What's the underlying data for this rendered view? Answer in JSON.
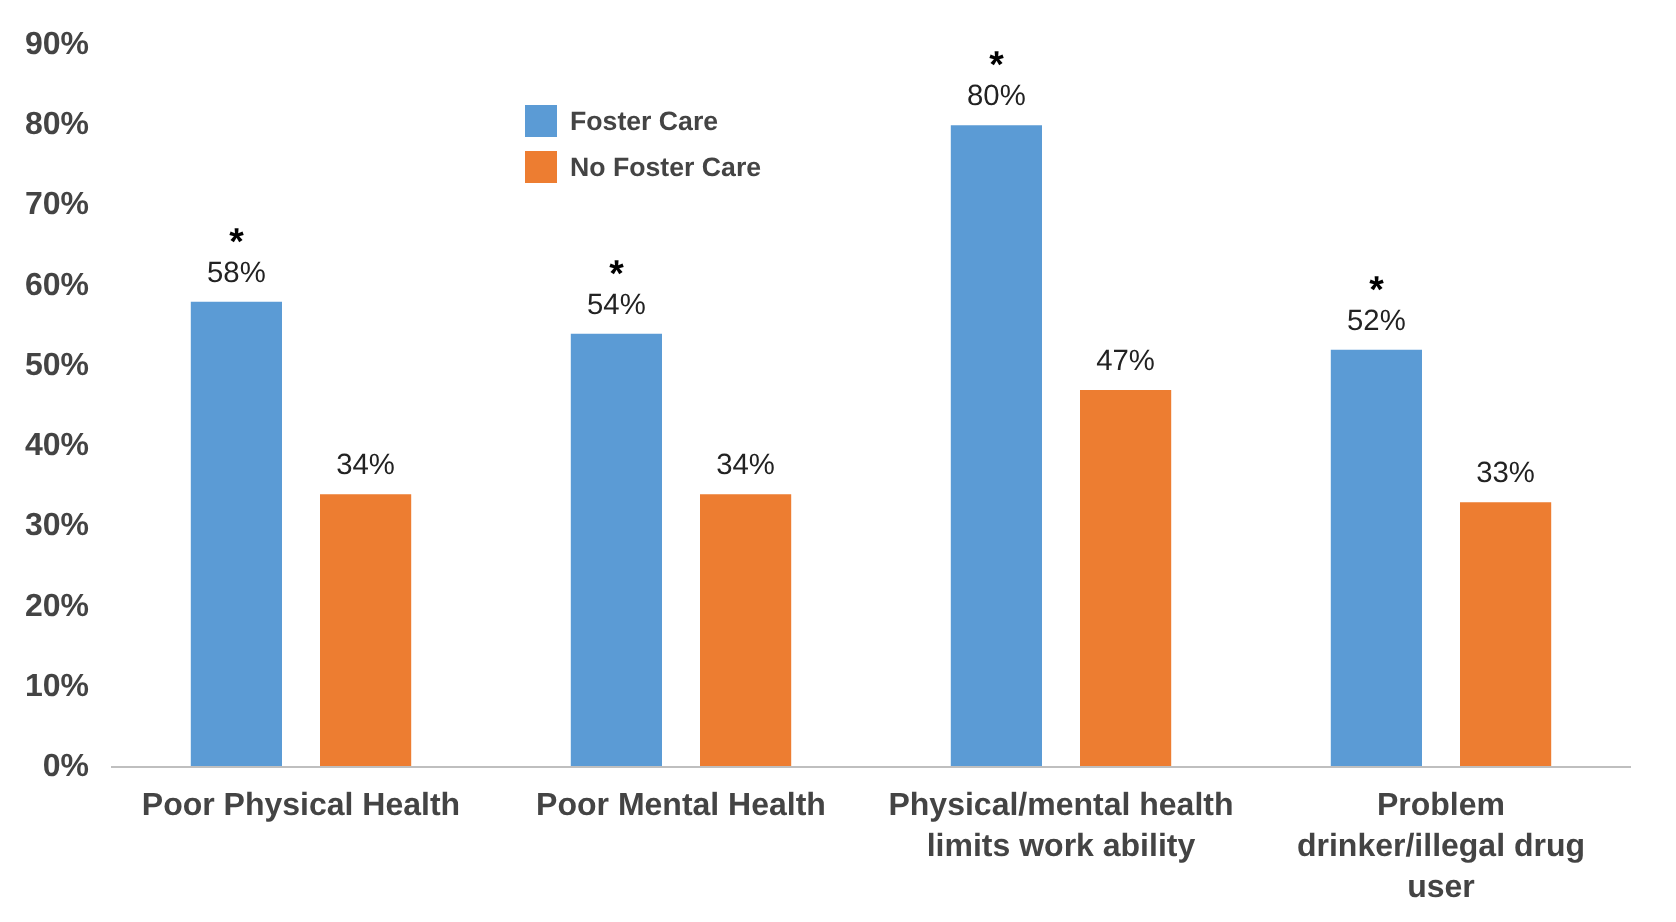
{
  "chart_data": {
    "type": "bar",
    "categories": [
      "Poor Physical Health",
      "Poor Mental Health",
      "Physical/mental health limits work ability",
      "Problem drinker/illegal drug user"
    ],
    "series": [
      {
        "name": "Foster Care",
        "color": "#5b9bd5",
        "values": [
          58,
          54,
          80,
          52
        ],
        "value_labels": [
          "58%",
          "54%",
          "80%",
          "52%"
        ]
      },
      {
        "name": "No Foster Care",
        "color": "#ed7d31",
        "values": [
          34,
          34,
          47,
          33
        ],
        "value_labels": [
          "34%",
          "34%",
          "47%",
          "33%"
        ]
      }
    ],
    "ylim": [
      0,
      90
    ],
    "yticks": [
      {
        "value": 0,
        "label": "0%"
      },
      {
        "value": 10,
        "label": "10%"
      },
      {
        "value": 20,
        "label": "20%"
      },
      {
        "value": 30,
        "label": "30%"
      },
      {
        "value": 40,
        "label": "40%"
      },
      {
        "value": 50,
        "label": "50%"
      },
      {
        "value": 60,
        "label": "60%"
      },
      {
        "value": 70,
        "label": "70%"
      },
      {
        "value": 80,
        "label": "80%"
      },
      {
        "value": 90,
        "label": "90%"
      }
    ],
    "annotations": [
      "*",
      "*",
      "*",
      "*"
    ],
    "grid": false,
    "legend": "top"
  }
}
